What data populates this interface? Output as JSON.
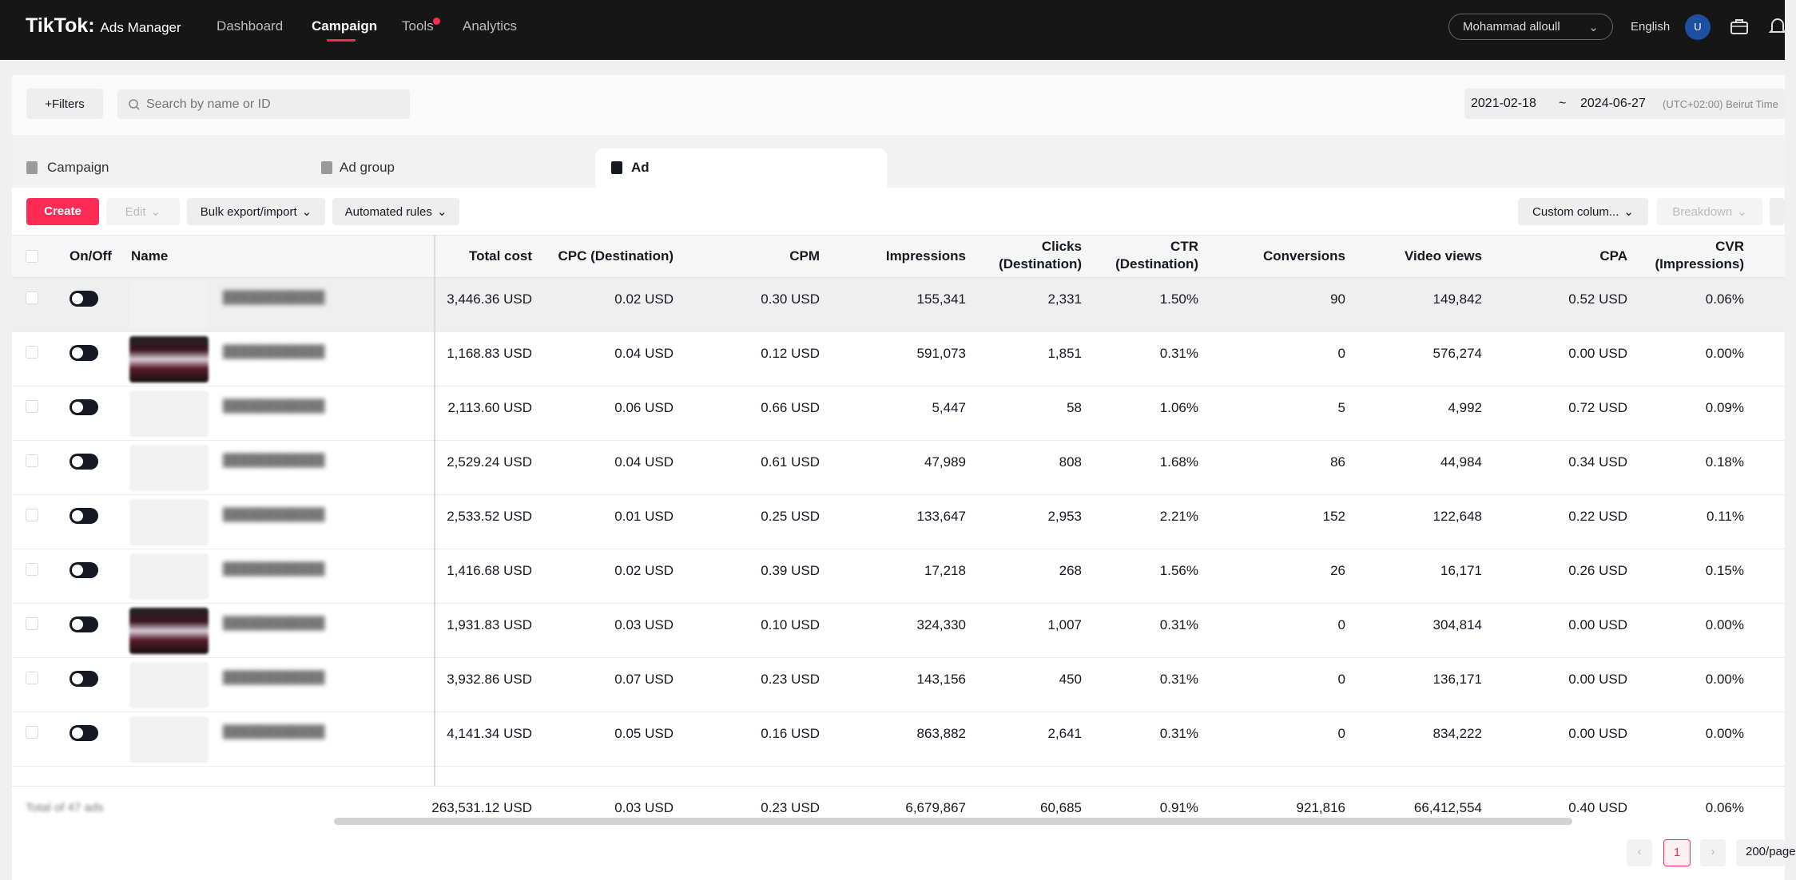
{
  "brand": {
    "name": "TikTok",
    "product": "Ads Manager"
  },
  "nav": [
    "Dashboard",
    "Campaign",
    "Tools",
    "Analytics"
  ],
  "account": {
    "name": "Mohammad alloull",
    "language": "English",
    "avatar_letter": "U"
  },
  "toolbar": {
    "filters_label": "+Filters",
    "search_placeholder": "Search by name or ID",
    "date_start": "2021-02-18",
    "date_sep": "~",
    "date_end": "2024-06-27",
    "timezone": "(UTC+02:00) Beirut Time"
  },
  "tabs": [
    "Campaign",
    "Ad group",
    "Ad"
  ],
  "actions": {
    "create": "Create",
    "edit": "Edit",
    "bulk": "Bulk export/import",
    "rules": "Automated rules",
    "custom_columns": "Custom colum...",
    "breakdown": "Breakdown"
  },
  "columns": {
    "onoff": "On/Off",
    "name": "Name",
    "total_cost": "Total cost",
    "cpc": "CPC (Destination)",
    "cpm": "CPM",
    "impressions": "Impressions",
    "clicks_1": "Clicks",
    "clicks_2": "(Destination)",
    "ctr_1": "CTR",
    "ctr_2": "(Destination)",
    "conversions": "Conversions",
    "video_views": "Video views",
    "cpa": "CPA",
    "cvr_1": "CVR",
    "cvr_2": "(Impressions)"
  },
  "rows": [
    {
      "total_cost": "3,446.36 USD",
      "cpc": "0.02 USD",
      "cpm": "0.30 USD",
      "impressions": "155,341",
      "clicks": "2,331",
      "ctr": "1.50%",
      "conversions": "90",
      "video_views": "149,842",
      "cpa": "0.52 USD",
      "cvr": "0.06%"
    },
    {
      "total_cost": "1,168.83 USD",
      "cpc": "0.04 USD",
      "cpm": "0.12 USD",
      "impressions": "591,073",
      "clicks": "1,851",
      "ctr": "0.31%",
      "conversions": "0",
      "video_views": "576,274",
      "cpa": "0.00 USD",
      "cvr": "0.00%"
    },
    {
      "total_cost": "2,113.60 USD",
      "cpc": "0.06 USD",
      "cpm": "0.66 USD",
      "impressions": "5,447",
      "clicks": "58",
      "ctr": "1.06%",
      "conversions": "5",
      "video_views": "4,992",
      "cpa": "0.72 USD",
      "cvr": "0.09%"
    },
    {
      "total_cost": "2,529.24 USD",
      "cpc": "0.04 USD",
      "cpm": "0.61 USD",
      "impressions": "47,989",
      "clicks": "808",
      "ctr": "1.68%",
      "conversions": "86",
      "video_views": "44,984",
      "cpa": "0.34 USD",
      "cvr": "0.18%"
    },
    {
      "total_cost": "2,533.52 USD",
      "cpc": "0.01 USD",
      "cpm": "0.25 USD",
      "impressions": "133,647",
      "clicks": "2,953",
      "ctr": "2.21%",
      "conversions": "152",
      "video_views": "122,648",
      "cpa": "0.22 USD",
      "cvr": "0.11%"
    },
    {
      "total_cost": "1,416.68 USD",
      "cpc": "0.02 USD",
      "cpm": "0.39 USD",
      "impressions": "17,218",
      "clicks": "268",
      "ctr": "1.56%",
      "conversions": "26",
      "video_views": "16,171",
      "cpa": "0.26 USD",
      "cvr": "0.15%"
    },
    {
      "total_cost": "1,931.83 USD",
      "cpc": "0.03 USD",
      "cpm": "0.10 USD",
      "impressions": "324,330",
      "clicks": "1,007",
      "ctr": "0.31%",
      "conversions": "0",
      "video_views": "304,814",
      "cpa": "0.00 USD",
      "cvr": "0.00%"
    },
    {
      "total_cost": "3,932.86 USD",
      "cpc": "0.07 USD",
      "cpm": "0.23 USD",
      "impressions": "143,156",
      "clicks": "450",
      "ctr": "0.31%",
      "conversions": "0",
      "video_views": "136,171",
      "cpa": "0.00 USD",
      "cvr": "0.00%"
    },
    {
      "total_cost": "4,141.34 USD",
      "cpc": "0.05 USD",
      "cpm": "0.16 USD",
      "impressions": "863,882",
      "clicks": "2,641",
      "ctr": "0.31%",
      "conversions": "0",
      "video_views": "834,222",
      "cpa": "0.00 USD",
      "cvr": "0.00%"
    }
  ],
  "totals": {
    "label": "Total of 47 ads",
    "total_cost": "263,531.12 USD",
    "cpc": "0.03 USD",
    "cpm": "0.23 USD",
    "impressions": "6,679,867",
    "clicks": "60,685",
    "ctr": "0.91%",
    "conversions": "921,816",
    "video_views": "66,412,554",
    "cpa": "0.40 USD",
    "cvr": "0.06%"
  },
  "pagination": {
    "current_page": "1",
    "page_size": "200/page"
  },
  "colors": {
    "accent": "#fe2c55",
    "topbar": "#161616"
  }
}
